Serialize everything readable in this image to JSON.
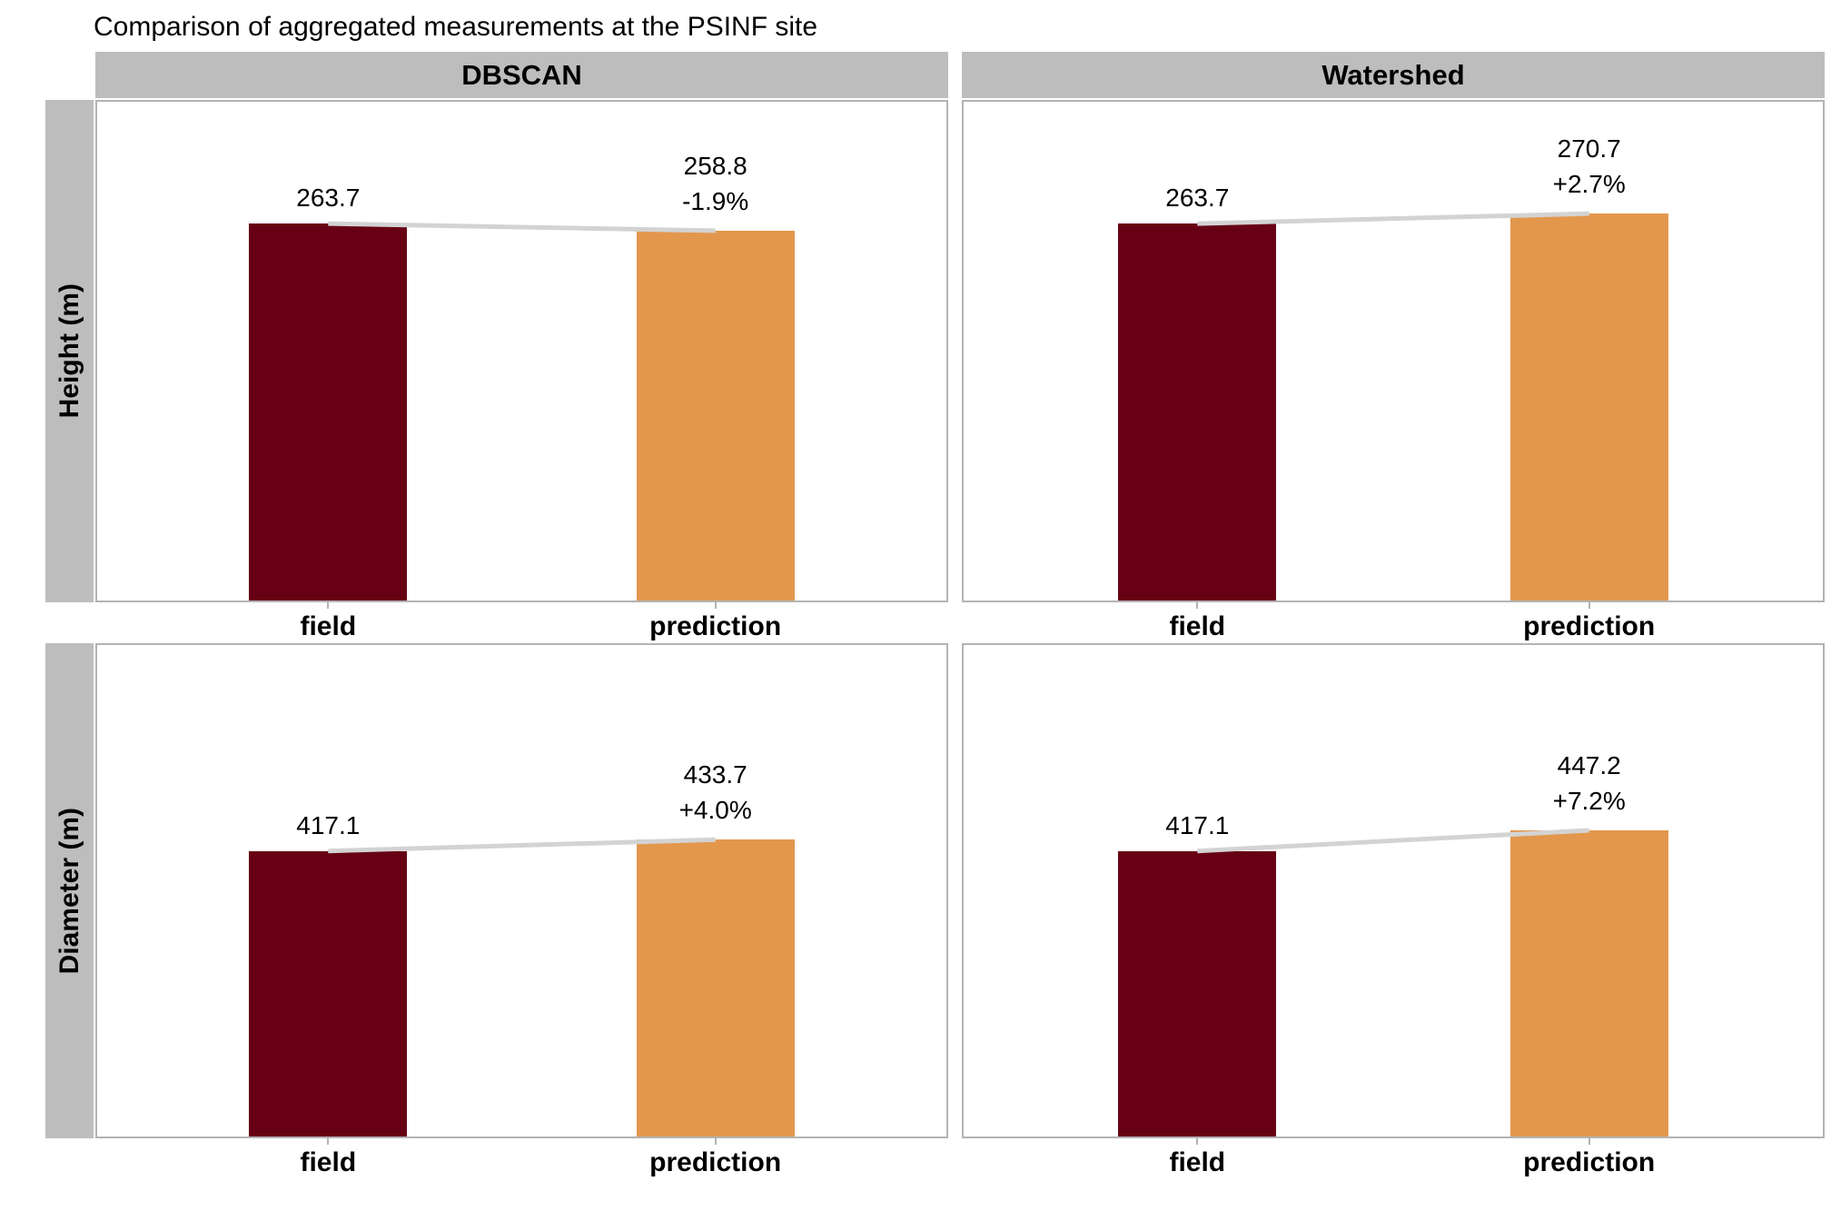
{
  "title": "Comparison of aggregated measurements at the PSINF site",
  "colors": {
    "field_bar": "#670014",
    "prediction_bar": "#E3974D",
    "connector_line": "#D3D3D3",
    "strip_background": "#BDBDBD",
    "panel_border": "#B3B3B3",
    "tick": "#B3B3B3",
    "text": "#000000"
  },
  "chart_data": {
    "type": "bar",
    "title": "Comparison of aggregated measurements at the PSINF site",
    "facet_columns": [
      "DBSCAN",
      "Watershed"
    ],
    "facet_rows": [
      "Height (m)",
      "Diameter (m)"
    ],
    "categories": [
      "field",
      "prediction"
    ],
    "grid": false,
    "legend": "none",
    "connector": "light gray line joining bar tops in each panel",
    "panels": [
      {
        "row": "Height (m)",
        "column": "DBSCAN",
        "values": {
          "field": 263.7,
          "prediction": 258.8
        },
        "pct_change": "-1.9%",
        "field_label": "263.7",
        "prediction_label": "258.8\n-1.9%",
        "ylim": [
          0,
          349
        ]
      },
      {
        "row": "Height (m)",
        "column": "Watershed",
        "values": {
          "field": 263.7,
          "prediction": 270.7
        },
        "pct_change": "+2.7%",
        "field_label": "263.7",
        "prediction_label": "270.7\n+2.7%",
        "ylim": [
          0,
          349
        ]
      },
      {
        "row": "Diameter (m)",
        "column": "DBSCAN",
        "values": {
          "field": 417.1,
          "prediction": 433.7
        },
        "pct_change": "+4.0%",
        "field_label": "417.1",
        "prediction_label": "433.7\n+4.0%",
        "ylim": [
          0,
          718
        ]
      },
      {
        "row": "Diameter (m)",
        "column": "Watershed",
        "values": {
          "field": 417.1,
          "prediction": 447.2
        },
        "pct_change": "+7.2%",
        "field_label": "417.1",
        "prediction_label": "447.2\n+7.2%",
        "ylim": [
          0,
          718
        ]
      }
    ]
  }
}
